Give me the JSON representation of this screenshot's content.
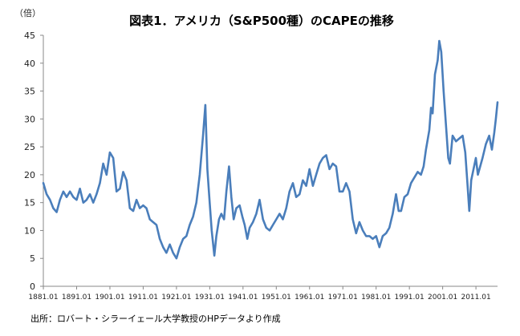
{
  "chart_data": {
    "type": "line",
    "title": "図表1．アメリカ（S&P500種）のCAPEの推移",
    "unit_label": "（倍）",
    "source": "出所：ロバート・シラーイェール大学教授のHPデータより作成",
    "xlabel": "",
    "ylabel": "",
    "ylim": [
      0,
      45
    ],
    "y_ticks": [
      "0",
      "5",
      "10",
      "15",
      "20",
      "25",
      "30",
      "35",
      "40",
      "45"
    ],
    "xlim": [
      1881.0,
      2017.5
    ],
    "x_tick_labels": [
      "1881.01",
      "1891.01",
      "1901.01",
      "1911.01",
      "1921.01",
      "1931.01",
      "1941.01",
      "1951.01",
      "1961.01",
      "1971.01",
      "1981.01",
      "1991.01",
      "2001.01",
      "2011.01"
    ],
    "grid": false,
    "legend": "none",
    "series": [
      {
        "name": "CAPE",
        "color": "#4a7ebb",
        "points": [
          [
            1881.0,
            18.5
          ],
          [
            1882.0,
            16.5
          ],
          [
            1883.0,
            15.5
          ],
          [
            1884.0,
            14.0
          ],
          [
            1885.0,
            13.3
          ],
          [
            1886.0,
            15.5
          ],
          [
            1887.0,
            17.0
          ],
          [
            1888.0,
            16.0
          ],
          [
            1889.0,
            17.0
          ],
          [
            1890.0,
            16.0
          ],
          [
            1891.0,
            15.5
          ],
          [
            1892.0,
            17.5
          ],
          [
            1893.0,
            15.0
          ],
          [
            1894.0,
            15.5
          ],
          [
            1895.0,
            16.5
          ],
          [
            1896.0,
            15.0
          ],
          [
            1897.0,
            16.5
          ],
          [
            1898.0,
            18.5
          ],
          [
            1899.0,
            22.0
          ],
          [
            1900.0,
            20.0
          ],
          [
            1901.0,
            24.0
          ],
          [
            1902.0,
            23.0
          ],
          [
            1903.0,
            17.0
          ],
          [
            1904.0,
            17.5
          ],
          [
            1905.0,
            20.5
          ],
          [
            1906.0,
            19.0
          ],
          [
            1907.0,
            14.0
          ],
          [
            1908.0,
            13.5
          ],
          [
            1909.0,
            15.5
          ],
          [
            1910.0,
            14.0
          ],
          [
            1911.0,
            14.5
          ],
          [
            1912.0,
            14.0
          ],
          [
            1913.0,
            12.0
          ],
          [
            1914.0,
            11.5
          ],
          [
            1915.0,
            11.0
          ],
          [
            1916.0,
            8.5
          ],
          [
            1917.0,
            7.0
          ],
          [
            1918.0,
            6.0
          ],
          [
            1919.0,
            7.5
          ],
          [
            1920.0,
            6.0
          ],
          [
            1921.0,
            5.0
          ],
          [
            1922.0,
            7.0
          ],
          [
            1923.0,
            8.5
          ],
          [
            1924.0,
            9.0
          ],
          [
            1925.0,
            11.0
          ],
          [
            1926.0,
            12.5
          ],
          [
            1927.0,
            15.0
          ],
          [
            1928.0,
            20.0
          ],
          [
            1929.0,
            27.0
          ],
          [
            1929.7,
            32.5
          ],
          [
            1930.3,
            21.0
          ],
          [
            1931.0,
            15.0
          ],
          [
            1931.6,
            10.0
          ],
          [
            1932.4,
            5.5
          ],
          [
            1933.0,
            9.0
          ],
          [
            1933.8,
            12.0
          ],
          [
            1934.5,
            13.0
          ],
          [
            1935.3,
            12.0
          ],
          [
            1936.0,
            17.0
          ],
          [
            1936.8,
            21.5
          ],
          [
            1937.5,
            16.0
          ],
          [
            1938.2,
            12.0
          ],
          [
            1939.0,
            14.0
          ],
          [
            1940.0,
            14.5
          ],
          [
            1940.8,
            12.5
          ],
          [
            1941.5,
            11.0
          ],
          [
            1942.3,
            8.5
          ],
          [
            1943.0,
            10.5
          ],
          [
            1944.0,
            11.5
          ],
          [
            1945.0,
            13.0
          ],
          [
            1946.0,
            15.5
          ],
          [
            1947.0,
            12.0
          ],
          [
            1948.0,
            10.5
          ],
          [
            1949.0,
            10.0
          ],
          [
            1950.0,
            11.0
          ],
          [
            1951.0,
            12.0
          ],
          [
            1952.0,
            13.0
          ],
          [
            1953.0,
            12.0
          ],
          [
            1954.0,
            14.0
          ],
          [
            1955.0,
            17.0
          ],
          [
            1956.0,
            18.5
          ],
          [
            1957.0,
            16.0
          ],
          [
            1958.0,
            16.5
          ],
          [
            1959.0,
            19.0
          ],
          [
            1960.0,
            18.0
          ],
          [
            1961.0,
            21.0
          ],
          [
            1962.0,
            18.0
          ],
          [
            1963.0,
            20.0
          ],
          [
            1964.0,
            22.0
          ],
          [
            1965.0,
            23.0
          ],
          [
            1966.0,
            23.5
          ],
          [
            1967.0,
            21.0
          ],
          [
            1968.0,
            22.0
          ],
          [
            1969.0,
            21.5
          ],
          [
            1970.0,
            17.0
          ],
          [
            1971.0,
            17.0
          ],
          [
            1972.0,
            18.5
          ],
          [
            1973.0,
            17.0
          ],
          [
            1974.0,
            12.0
          ],
          [
            1975.0,
            9.5
          ],
          [
            1976.0,
            11.5
          ],
          [
            1977.0,
            10.0
          ],
          [
            1978.0,
            9.0
          ],
          [
            1979.0,
            9.0
          ],
          [
            1980.0,
            8.5
          ],
          [
            1981.0,
            9.0
          ],
          [
            1982.0,
            7.0
          ],
          [
            1983.0,
            9.0
          ],
          [
            1984.0,
            9.5
          ],
          [
            1985.0,
            10.5
          ],
          [
            1986.0,
            13.0
          ],
          [
            1987.0,
            16.5
          ],
          [
            1987.8,
            13.5
          ],
          [
            1988.5,
            13.5
          ],
          [
            1989.5,
            16.0
          ],
          [
            1990.5,
            16.5
          ],
          [
            1991.5,
            18.5
          ],
          [
            1992.5,
            19.5
          ],
          [
            1993.5,
            20.5
          ],
          [
            1994.5,
            20.0
          ],
          [
            1995.3,
            21.5
          ],
          [
            1996.0,
            24.5
          ],
          [
            1997.0,
            28.0
          ],
          [
            1997.5,
            32.0
          ],
          [
            1998.0,
            31.0
          ],
          [
            1998.7,
            38.0
          ],
          [
            1999.5,
            40.5
          ],
          [
            2000.0,
            44.0
          ],
          [
            2000.6,
            42.0
          ],
          [
            2001.3,
            35.0
          ],
          [
            2002.0,
            29.0
          ],
          [
            2002.7,
            23.0
          ],
          [
            2003.2,
            22.0
          ],
          [
            2004.0,
            27.0
          ],
          [
            2005.0,
            26.0
          ],
          [
            2006.0,
            26.5
          ],
          [
            2007.0,
            27.0
          ],
          [
            2007.8,
            24.0
          ],
          [
            2008.5,
            18.0
          ],
          [
            2009.0,
            13.5
          ],
          [
            2009.6,
            19.0
          ],
          [
            2010.3,
            21.0
          ],
          [
            2011.0,
            23.0
          ],
          [
            2011.6,
            20.0
          ],
          [
            2012.3,
            21.5
          ],
          [
            2013.0,
            23.0
          ],
          [
            2014.0,
            25.5
          ],
          [
            2015.0,
            27.0
          ],
          [
            2015.8,
            24.5
          ],
          [
            2016.5,
            27.5
          ],
          [
            2017.0,
            30.0
          ],
          [
            2017.5,
            33.0
          ]
        ]
      }
    ]
  }
}
